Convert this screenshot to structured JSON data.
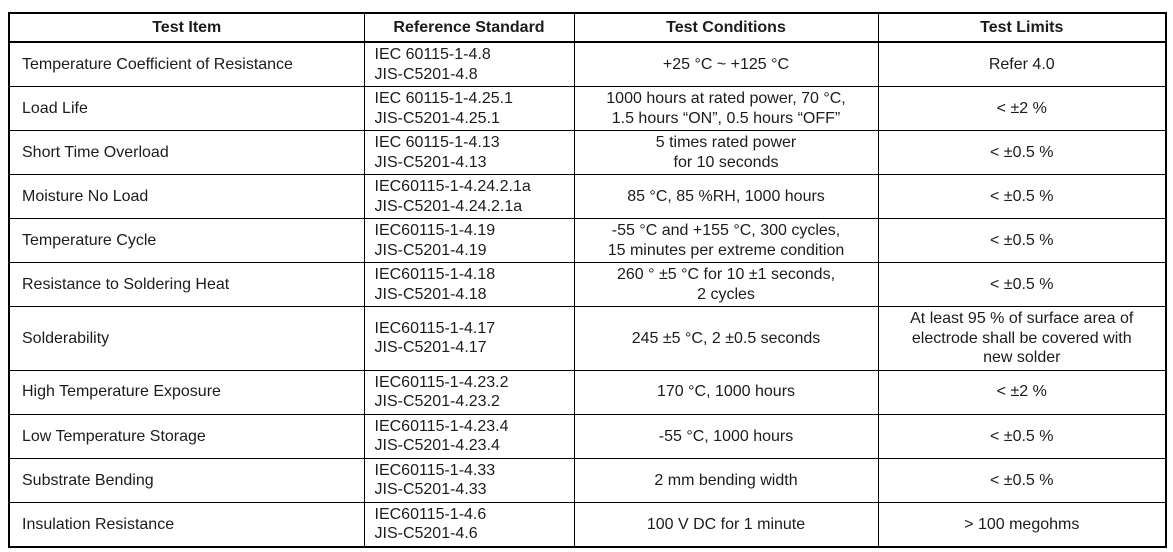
{
  "colors": {
    "background": "#ffffff",
    "border": "#000000",
    "text": "#1c1c1c"
  },
  "table": {
    "columns": [
      "Test Item",
      "Reference Standard",
      "Test Conditions",
      "Test Limits"
    ],
    "rows": [
      {
        "test_item": [
          "Temperature Coefficient of Resistance"
        ],
        "reference_standard": [
          "IEC 60115-1-4.8",
          "JIS-C5201-4.8"
        ],
        "test_conditions": [
          "+25 °C ~ +125 °C"
        ],
        "test_limits": [
          "Refer 4.0"
        ]
      },
      {
        "test_item": [
          "Load Life"
        ],
        "reference_standard": [
          "IEC 60115-1-4.25.1",
          "JIS-C5201-4.25.1"
        ],
        "test_conditions": [
          "1000 hours at rated power, 70 °C,",
          "1.5 hours “ON”, 0.5 hours “OFF”"
        ],
        "test_limits": [
          "< ±2 %"
        ]
      },
      {
        "test_item": [
          "Short Time Overload"
        ],
        "reference_standard": [
          "IEC 60115-1-4.13",
          "JIS-C5201-4.13"
        ],
        "test_conditions": [
          "5 times rated power",
          "for 10 seconds"
        ],
        "test_limits": [
          "< ±0.5 %"
        ]
      },
      {
        "test_item": [
          "Moisture No Load"
        ],
        "reference_standard": [
          "IEC60115-1-4.24.2.1a",
          "JIS-C5201-4.24.2.1a"
        ],
        "test_conditions": [
          "85 °C, 85 %RH, 1000 hours"
        ],
        "test_limits": [
          "< ±0.5 %"
        ]
      },
      {
        "test_item": [
          "Temperature Cycle"
        ],
        "reference_standard": [
          "IEC60115-1-4.19",
          "JIS-C5201-4.19"
        ],
        "test_conditions": [
          "-55 °C and +155 °C, 300 cycles,",
          "15 minutes per extreme condition"
        ],
        "test_limits": [
          "< ±0.5 %"
        ]
      },
      {
        "test_item": [
          "Resistance to Soldering Heat"
        ],
        "reference_standard": [
          "IEC60115-1-4.18",
          "JIS-C5201-4.18"
        ],
        "test_conditions": [
          "260 ° ±5 °C for 10 ±1 seconds,",
          "2 cycles"
        ],
        "test_limits": [
          "< ±0.5 %"
        ]
      },
      {
        "test_item": [
          "Solderability"
        ],
        "reference_standard": [
          "IEC60115-1-4.17",
          "JIS-C5201-4.17"
        ],
        "test_conditions": [
          "245 ±5 °C, 2 ±0.5 seconds"
        ],
        "test_limits": [
          "At least 95 % of surface area of",
          "electrode shall be covered with",
          "new solder"
        ]
      },
      {
        "test_item": [
          "High Temperature Exposure"
        ],
        "reference_standard": [
          "IEC60115-1-4.23.2",
          "JIS-C5201-4.23.2"
        ],
        "test_conditions": [
          "170 °C, 1000 hours"
        ],
        "test_limits": [
          "< ±2 %"
        ]
      },
      {
        "test_item": [
          "Low Temperature Storage"
        ],
        "reference_standard": [
          "IEC60115-1-4.23.4",
          "JIS-C5201-4.23.4"
        ],
        "test_conditions": [
          "-55 °C, 1000 hours"
        ],
        "test_limits": [
          "< ±0.5 %"
        ]
      },
      {
        "test_item": [
          "Substrate Bending"
        ],
        "reference_standard": [
          "IEC60115-1-4.33",
          "JIS-C5201-4.33"
        ],
        "test_conditions": [
          "2 mm bending width"
        ],
        "test_limits": [
          "< ±0.5 %"
        ]
      },
      {
        "test_item": [
          "Insulation Resistance"
        ],
        "reference_standard": [
          "IEC60115-1-4.6",
          "JIS-C5201-4.6"
        ],
        "test_conditions": [
          "100 V DC for 1 minute"
        ],
        "test_limits": [
          "> 100 megohms"
        ]
      }
    ]
  }
}
